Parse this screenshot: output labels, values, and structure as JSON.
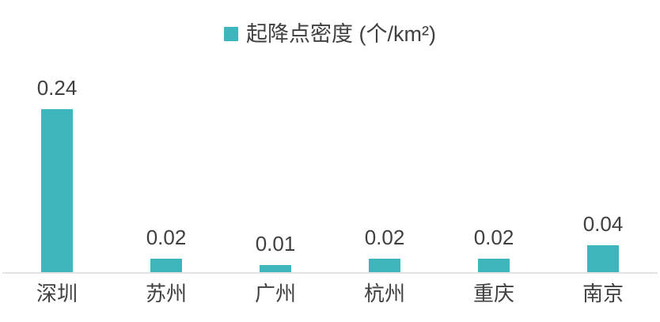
{
  "legend": {
    "label": "起降点密度 (个/km²)"
  },
  "colors": {
    "bar": "#3DB6BD",
    "text": "#404040",
    "axis_line": "#E4E4E4",
    "background": "#FFFFFF"
  },
  "chart_data": {
    "type": "bar",
    "title": "",
    "categories": [
      "深圳",
      "苏州",
      "广州",
      "杭州",
      "重庆",
      "南京"
    ],
    "values": [
      0.24,
      0.02,
      0.01,
      0.02,
      0.02,
      0.04
    ],
    "value_labels": [
      "0.24",
      "0.02",
      "0.01",
      "0.02",
      "0.02",
      "0.04"
    ],
    "series": [
      {
        "name": "起降点密度 (个/km²)",
        "values": [
          0.24,
          0.02,
          0.01,
          0.02,
          0.02,
          0.04
        ]
      }
    ],
    "legend": [
      "起降点密度 (个/km²)"
    ],
    "legend_position": "top-center",
    "xlabel": "",
    "ylabel": "",
    "ylim": [
      0,
      0.26
    ],
    "grid": false,
    "y_axis_visible": false,
    "data_labels": true,
    "bar_color": "#3DB6BD"
  }
}
